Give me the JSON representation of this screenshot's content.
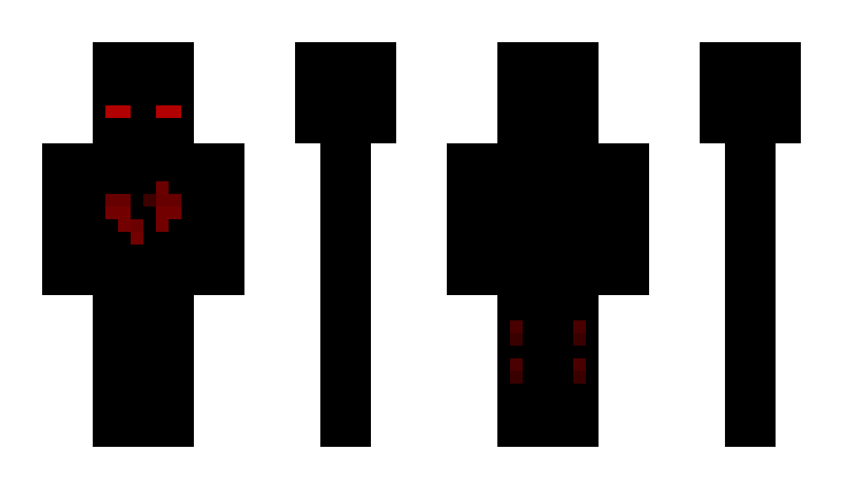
{
  "views": [
    "front",
    "right-side",
    "back",
    "left-side"
  ],
  "colors": {
    "background": "#ffffff",
    "body": "#000000",
    "eyes": "#b00000",
    "heart": "#730000",
    "heart_shade": "#660000",
    "heart_dark": "#3d0000",
    "back_mark_top": "#4a0000",
    "back_mark_bottom": "#3a0000"
  }
}
